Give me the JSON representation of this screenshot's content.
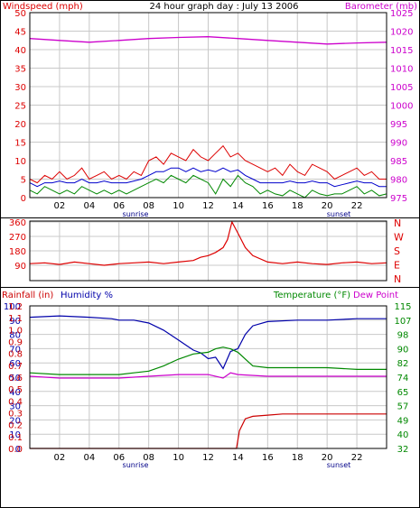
{
  "colors": {
    "wind": "#dd0000",
    "wind_gust": "#dd0000",
    "wind_avg": "#0000cc",
    "wind_low": "#008800",
    "barometer": "#cc00cc",
    "direction": "#dd0000",
    "rain": "#cc0000",
    "humidity": "#0000aa",
    "temperature": "#008800",
    "dewpoint": "#cc00cc",
    "grid": "#c8c8c8",
    "border": "#000000"
  },
  "chart_data": [
    {
      "type": "line",
      "id": "wind-baro",
      "title": "24 hour graph day : July 13 2006",
      "ylabel_left": "Windspeed (mph)",
      "ylabel_right": "Barometer (mb)",
      "ylim_left": [
        0,
        50
      ],
      "yticks_left": [
        "0",
        "5",
        "10",
        "15",
        "20",
        "25",
        "30",
        "35",
        "40",
        "45",
        "50"
      ],
      "ylim_right": [
        975,
        1025
      ],
      "yticks_right": [
        "975",
        "980",
        "985",
        "990",
        "995",
        "1000",
        "1005",
        "1010",
        "1015",
        "1020",
        "1025"
      ],
      "xticks": [
        "02",
        "04",
        "06",
        "08",
        "10",
        "12",
        "14",
        "16",
        "18",
        "20",
        "22"
      ],
      "xlim_hours": [
        0,
        24
      ],
      "sunrise_label": "sunrise",
      "sunrise_hour": 6.1,
      "sunset_label": "sunset",
      "sunset_hour": 20.7,
      "series": [
        {
          "role": "gust",
          "x": [
            0,
            0.5,
            1,
            1.5,
            2,
            2.5,
            3,
            3.5,
            4,
            4.5,
            5,
            5.5,
            6,
            6.5,
            7,
            7.5,
            8,
            8.5,
            9,
            9.5,
            10,
            10.5,
            11,
            11.5,
            12,
            12.5,
            13,
            13.5,
            14,
            14.5,
            15,
            15.5,
            16,
            16.5,
            17,
            17.5,
            18,
            18.5,
            19,
            19.5,
            20,
            20.5,
            21,
            21.5,
            22,
            22.5,
            23,
            23.5,
            24
          ],
          "y": [
            5,
            4,
            6,
            5,
            7,
            5,
            6,
            8,
            5,
            6,
            7,
            5,
            6,
            5,
            7,
            6,
            10,
            11,
            9,
            12,
            11,
            10,
            13,
            11,
            10,
            12,
            14,
            11,
            12,
            10,
            9,
            8,
            7,
            8,
            6,
            9,
            7,
            6,
            9,
            8,
            7,
            5,
            6,
            7,
            8,
            6,
            7,
            5,
            5
          ]
        },
        {
          "role": "avg",
          "x": [
            0,
            0.5,
            1,
            1.5,
            2,
            2.5,
            3,
            3.5,
            4,
            4.5,
            5,
            5.5,
            6,
            6.5,
            7,
            7.5,
            8,
            8.5,
            9,
            9.5,
            10,
            10.5,
            11,
            11.5,
            12,
            12.5,
            13,
            13.5,
            14,
            14.5,
            15,
            15.5,
            16,
            16.5,
            17,
            17.5,
            18,
            18.5,
            19,
            19.5,
            20,
            20.5,
            21,
            21.5,
            22,
            22.5,
            23,
            23.5,
            24
          ],
          "y": [
            4,
            3,
            4,
            4,
            4.5,
            4,
            4,
            5,
            4,
            4,
            4.5,
            4,
            4,
            4,
            4.5,
            5,
            6,
            7,
            7,
            8,
            8,
            7,
            8,
            7,
            7.5,
            7,
            8,
            7,
            7.5,
            6,
            5,
            4,
            4,
            4,
            4,
            4.5,
            4,
            4,
            4.5,
            4,
            4,
            3,
            3.5,
            4,
            4.5,
            4,
            4,
            3,
            3
          ]
        },
        {
          "role": "low",
          "x": [
            0,
            0.5,
            1,
            1.5,
            2,
            2.5,
            3,
            3.5,
            4,
            4.5,
            5,
            5.5,
            6,
            6.5,
            7,
            7.5,
            8,
            8.5,
            9,
            9.5,
            10,
            10.5,
            11,
            11.5,
            12,
            12.5,
            13,
            13.5,
            14,
            14.5,
            15,
            15.5,
            16,
            16.5,
            17,
            17.5,
            18,
            18.5,
            19,
            19.5,
            20,
            20.5,
            21,
            21.5,
            22,
            22.5,
            23,
            23.5,
            24
          ],
          "y": [
            2,
            1,
            3,
            2,
            1,
            2,
            1,
            3,
            2,
            1,
            2,
            1,
            2,
            1,
            2,
            3,
            4,
            5,
            4,
            6,
            5,
            4,
            6,
            5,
            4,
            1,
            5,
            3,
            6,
            4,
            3,
            1,
            2,
            1,
            0.5,
            2,
            1,
            0,
            2,
            1,
            0.5,
            1,
            1,
            2,
            3,
            1,
            2,
            0.5,
            1
          ]
        },
        {
          "role": "barometer",
          "x": [
            0,
            2,
            4,
            6,
            8,
            10,
            12,
            14,
            16,
            18,
            20,
            22,
            24
          ],
          "y": [
            1018,
            1017.5,
            1017,
            1017.5,
            1018,
            1018.3,
            1018.5,
            1018,
            1017.5,
            1017,
            1016.5,
            1016.8,
            1017
          ]
        }
      ]
    },
    {
      "type": "line",
      "id": "direction",
      "ylabel_left": "",
      "yticks_left": [
        "0",
        "90",
        "180",
        "270",
        "360"
      ],
      "ylim_left": [
        0,
        360
      ],
      "compass_labels": [
        "N",
        "W",
        "S",
        "E",
        "N"
      ],
      "xlim_hours": [
        0,
        24
      ],
      "series": [
        {
          "role": "direction",
          "x": [
            0,
            1,
            2,
            3,
            4,
            5,
            6,
            7,
            8,
            9,
            10,
            11,
            11.5,
            12,
            12.5,
            13,
            13.3,
            13.6,
            14,
            14.5,
            15,
            16,
            17,
            18,
            19,
            20,
            21,
            22,
            23,
            24
          ],
          "y": [
            100,
            105,
            95,
            110,
            100,
            90,
            100,
            105,
            110,
            100,
            110,
            120,
            140,
            150,
            170,
            200,
            250,
            360,
            290,
            200,
            150,
            110,
            100,
            110,
            100,
            95,
            105,
            110,
            100,
            105
          ]
        }
      ]
    },
    {
      "type": "line",
      "id": "rain-hum-temp",
      "ylabel_rain": "Rainfall (in)",
      "ylabel_humidity": "Humidity %",
      "ylabel_temperature": "Temperature (°F)",
      "ylabel_dewpoint": "Dew Point",
      "ylim_humidity": [
        0,
        100
      ],
      "yticks_humidity": [
        "0",
        "10",
        "20",
        "30",
        "40",
        "50",
        "60",
        "70",
        "80",
        "90",
        "100"
      ],
      "ylim_rain": [
        0,
        1.2
      ],
      "yticks_rain": [
        "0.0",
        "0.1",
        "0.2",
        "0.3",
        "0.4",
        "0.5",
        "0.6",
        "0.7",
        "0.8",
        "0.9",
        "1.0",
        "1.1",
        "1.2"
      ],
      "ylim_temp": [
        32,
        115
      ],
      "yticks_temp": [
        "32",
        "40",
        "49",
        "57",
        "65",
        "74",
        "82",
        "90",
        "98",
        "107",
        "115"
      ],
      "xticks": [
        "02",
        "04",
        "06",
        "08",
        "10",
        "12",
        "14",
        "16",
        "18",
        "20",
        "22"
      ],
      "sunrise_label": "sunrise",
      "sunrise_hour": 6.1,
      "sunset_label": "sunset",
      "sunset_hour": 20.7,
      "series": [
        {
          "role": "humidity",
          "x": [
            0,
            2,
            4,
            5.5,
            6,
            7,
            8,
            9,
            10,
            11,
            11.5,
            12,
            12.5,
            13,
            13.5,
            14,
            14.5,
            15,
            16,
            18,
            20,
            22,
            24
          ],
          "y": [
            92,
            93,
            92,
            91,
            90,
            90,
            88,
            83,
            76,
            69,
            67,
            63,
            64,
            56,
            68,
            70,
            80,
            86,
            89,
            90,
            90,
            91,
            91
          ]
        },
        {
          "role": "temperature",
          "x": [
            0,
            2,
            4,
            6,
            7,
            8,
            9,
            10,
            11,
            12,
            12.5,
            13,
            13.5,
            14,
            15,
            16,
            18,
            20,
            22,
            24
          ],
          "y": [
            76,
            75,
            75,
            75,
            76,
            77,
            80,
            84,
            87,
            88,
            90,
            91,
            90,
            88,
            80,
            79,
            79,
            79,
            78,
            78
          ]
        },
        {
          "role": "dewpoint",
          "x": [
            0,
            2,
            4,
            6,
            8,
            10,
            12,
            13,
            13.5,
            14,
            16,
            18,
            20,
            22,
            24
          ],
          "y": [
            74,
            73,
            73,
            73,
            74,
            75,
            75,
            73,
            76,
            75,
            74,
            74,
            74,
            74,
            74
          ]
        },
        {
          "role": "rain",
          "x": [
            0,
            13.9,
            14.1,
            14.5,
            15,
            16,
            17,
            18,
            19,
            20,
            21,
            22,
            23,
            24
          ],
          "y": [
            0,
            0,
            0.15,
            0.25,
            0.27,
            0.28,
            0.29,
            0.29,
            0.29,
            0.29,
            0.29,
            0.29,
            0.29,
            0.29
          ]
        }
      ]
    }
  ]
}
